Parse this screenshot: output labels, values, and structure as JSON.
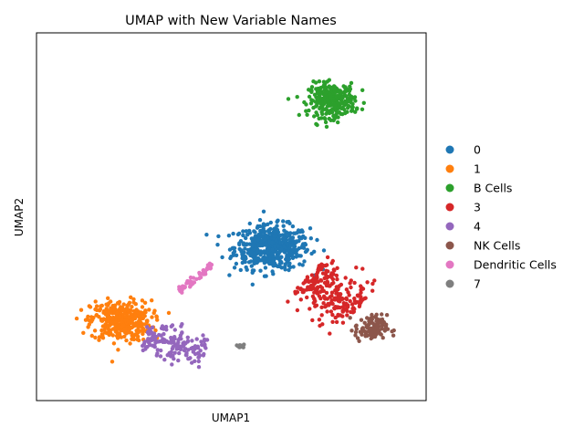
{
  "chart_data": {
    "type": "scatter",
    "title": "UMAP with New Variable Names",
    "xlabel": "UMAP1",
    "ylabel": "UMAP2",
    "xlim": [
      -1,
      11
    ],
    "ylim": [
      -1,
      11
    ],
    "xticks": false,
    "yticks": false,
    "grid": false,
    "legend_placement": "right, outside plot",
    "series": [
      {
        "name": "0",
        "color": "#1f77b4",
        "n": 520,
        "center": [
          6.25,
          4.0
        ],
        "spread": [
          1.05,
          0.65
        ],
        "shape": "blob"
      },
      {
        "name": "1",
        "color": "#ff7f0e",
        "n": 380,
        "center": [
          1.6,
          1.6
        ],
        "spread": [
          0.85,
          0.6
        ],
        "shape": "blob"
      },
      {
        "name": "B Cells",
        "color": "#2ca02c",
        "n": 300,
        "center": [
          8.1,
          8.8
        ],
        "spread": [
          0.65,
          0.5
        ],
        "shape": "blob"
      },
      {
        "name": "3",
        "color": "#d62728",
        "n": 240,
        "from": [
          7.4,
          3.1
        ],
        "to": [
          8.8,
          1.9
        ],
        "width": 0.45,
        "shape": "band"
      },
      {
        "name": "4",
        "color": "#9467bd",
        "n": 160,
        "from": [
          2.3,
          1.0
        ],
        "to": [
          4.2,
          0.6
        ],
        "width": 0.3,
        "shape": "band"
      },
      {
        "name": "NK Cells",
        "color": "#8c564b",
        "n": 110,
        "center": [
          9.3,
          1.35
        ],
        "spread": [
          0.45,
          0.4
        ],
        "shape": "blob"
      },
      {
        "name": "Dendritic Cells",
        "color": "#e377c2",
        "n": 50,
        "from": [
          3.4,
          2.55
        ],
        "to": [
          4.4,
          3.45
        ],
        "width": 0.06,
        "shape": "band"
      },
      {
        "name": "7",
        "color": "#7f7f7f",
        "n": 14,
        "center": [
          5.3,
          0.78
        ],
        "spread": [
          0.1,
          0.05
        ],
        "shape": "blob"
      }
    ]
  }
}
